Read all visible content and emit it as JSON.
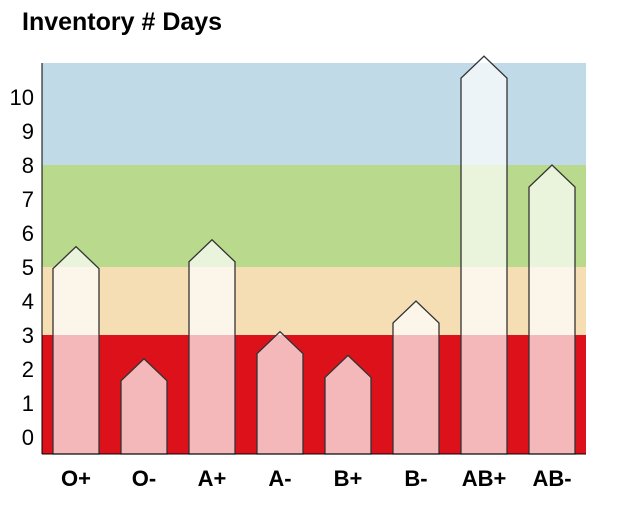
{
  "chart_data": {
    "type": "bar",
    "title": "Inventory # Days",
    "xlabel": "",
    "ylabel": "",
    "categories": [
      "O+",
      "O-",
      "A+",
      "A-",
      "B+",
      "B-",
      "AB+",
      "AB-"
    ],
    "values": [
      5.6,
      2.3,
      5.8,
      3.1,
      2.4,
      4.0,
      11.2,
      8.0
    ],
    "ylim": [
      -0.5,
      11
    ],
    "yticks": [
      0,
      1,
      2,
      3,
      4,
      5,
      6,
      7,
      8,
      9,
      10
    ],
    "zones": [
      {
        "from": -0.5,
        "to": 3,
        "color": "#dc111a"
      },
      {
        "from": 3,
        "to": 5,
        "color": "#f6deb4"
      },
      {
        "from": 5,
        "to": 8,
        "color": "#b9da8c"
      },
      {
        "from": 8,
        "to": 11,
        "color": "#c0dae7"
      }
    ],
    "grid": false,
    "legend": "none"
  },
  "colors": {
    "bar_outline": "#333333",
    "bar_fill": "#ffffff",
    "bar_fill_opacity": 0.7,
    "axis": "#000000"
  }
}
